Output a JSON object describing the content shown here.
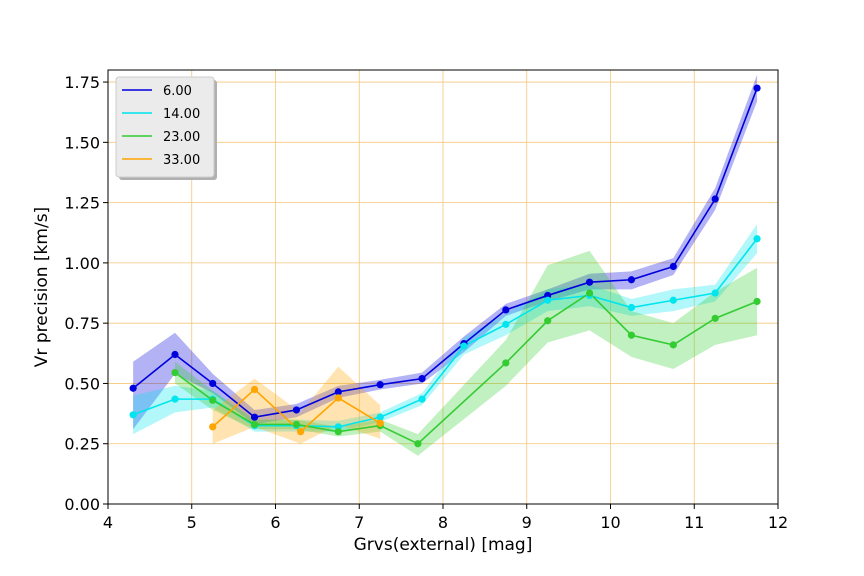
{
  "chart_data": {
    "type": "line",
    "xlabel": "Grvs(external) [mag]",
    "ylabel": "Vr precision [km/s]",
    "xlim": [
      4,
      12
    ],
    "ylim": [
      0,
      1.8
    ],
    "xticks": [
      4,
      5,
      6,
      7,
      8,
      9,
      10,
      11,
      12
    ],
    "xtick_labels": [
      "4",
      "5",
      "6",
      "7",
      "8",
      "9",
      "10",
      "11",
      "12"
    ],
    "yticks": [
      0,
      0.25,
      0.5,
      0.75,
      1.0,
      1.25,
      1.5,
      1.75
    ],
    "ytick_labels": [
      "0.00",
      "0.25",
      "0.50",
      "0.75",
      "1.00",
      "1.25",
      "1.50",
      "1.75"
    ],
    "grid": true,
    "grid_color": "#f5c77a",
    "legend_position": "top-left",
    "series": [
      {
        "name": "6.00",
        "color": "#0000dd",
        "x": [
          4.3,
          4.8,
          5.25,
          5.75,
          6.25,
          6.75,
          7.25,
          7.75,
          8.25,
          8.75,
          9.25,
          9.75,
          10.25,
          10.75,
          11.25,
          11.75
        ],
        "y": [
          0.48,
          0.62,
          0.5,
          0.36,
          0.39,
          0.465,
          0.495,
          0.52,
          0.665,
          0.805,
          0.865,
          0.92,
          0.93,
          0.985,
          1.265,
          1.725
        ],
        "lower": [
          0.31,
          0.54,
          0.46,
          0.33,
          0.36,
          0.44,
          0.475,
          0.5,
          0.63,
          0.78,
          0.84,
          0.89,
          0.89,
          0.95,
          1.22,
          1.67
        ],
        "upper": [
          0.59,
          0.71,
          0.54,
          0.39,
          0.415,
          0.49,
          0.515,
          0.545,
          0.695,
          0.83,
          0.89,
          0.955,
          0.965,
          1.02,
          1.31,
          1.78
        ]
      },
      {
        "name": "14.00",
        "color": "#00e5ee",
        "x": [
          4.3,
          4.8,
          5.25,
          5.75,
          6.25,
          6.75,
          7.25,
          7.75,
          8.25,
          8.75,
          9.25,
          9.75,
          10.25,
          10.75,
          11.25,
          11.75
        ],
        "y": [
          0.37,
          0.435,
          0.435,
          0.325,
          0.325,
          0.32,
          0.36,
          0.435,
          0.655,
          0.745,
          0.845,
          0.865,
          0.815,
          0.845,
          0.875,
          1.1
        ],
        "lower": [
          0.29,
          0.38,
          0.4,
          0.3,
          0.3,
          0.3,
          0.34,
          0.41,
          0.62,
          0.7,
          0.8,
          0.82,
          0.78,
          0.8,
          0.84,
          1.04
        ],
        "upper": [
          0.45,
          0.49,
          0.47,
          0.35,
          0.35,
          0.345,
          0.38,
          0.46,
          0.69,
          0.79,
          0.89,
          0.91,
          0.85,
          0.89,
          0.91,
          1.16
        ]
      },
      {
        "name": "23.00",
        "color": "#33cc33",
        "x": [
          4.8,
          5.25,
          5.75,
          6.25,
          6.75,
          7.25,
          7.7,
          8.75,
          9.25,
          9.75,
          10.25,
          10.75,
          11.25,
          11.75
        ],
        "y": [
          0.545,
          0.43,
          0.33,
          0.33,
          0.3,
          0.325,
          0.25,
          0.585,
          0.76,
          0.875,
          0.7,
          0.66,
          0.77,
          0.84
        ],
        "lower": [
          0.5,
          0.39,
          0.31,
          0.31,
          0.28,
          0.3,
          0.2,
          0.49,
          0.67,
          0.72,
          0.61,
          0.56,
          0.66,
          0.7
        ],
        "upper": [
          0.59,
          0.47,
          0.35,
          0.35,
          0.32,
          0.35,
          0.29,
          0.68,
          0.99,
          1.05,
          0.8,
          0.75,
          0.88,
          0.98
        ]
      },
      {
        "name": "33.00",
        "color": "#ffa500",
        "x": [
          5.25,
          5.75,
          6.3,
          6.75,
          7.25
        ],
        "y": [
          0.32,
          0.475,
          0.3,
          0.44,
          0.335
        ],
        "lower": [
          0.25,
          0.32,
          0.25,
          0.33,
          0.27
        ],
        "upper": [
          0.39,
          0.52,
          0.38,
          0.57,
          0.41
        ]
      }
    ]
  }
}
